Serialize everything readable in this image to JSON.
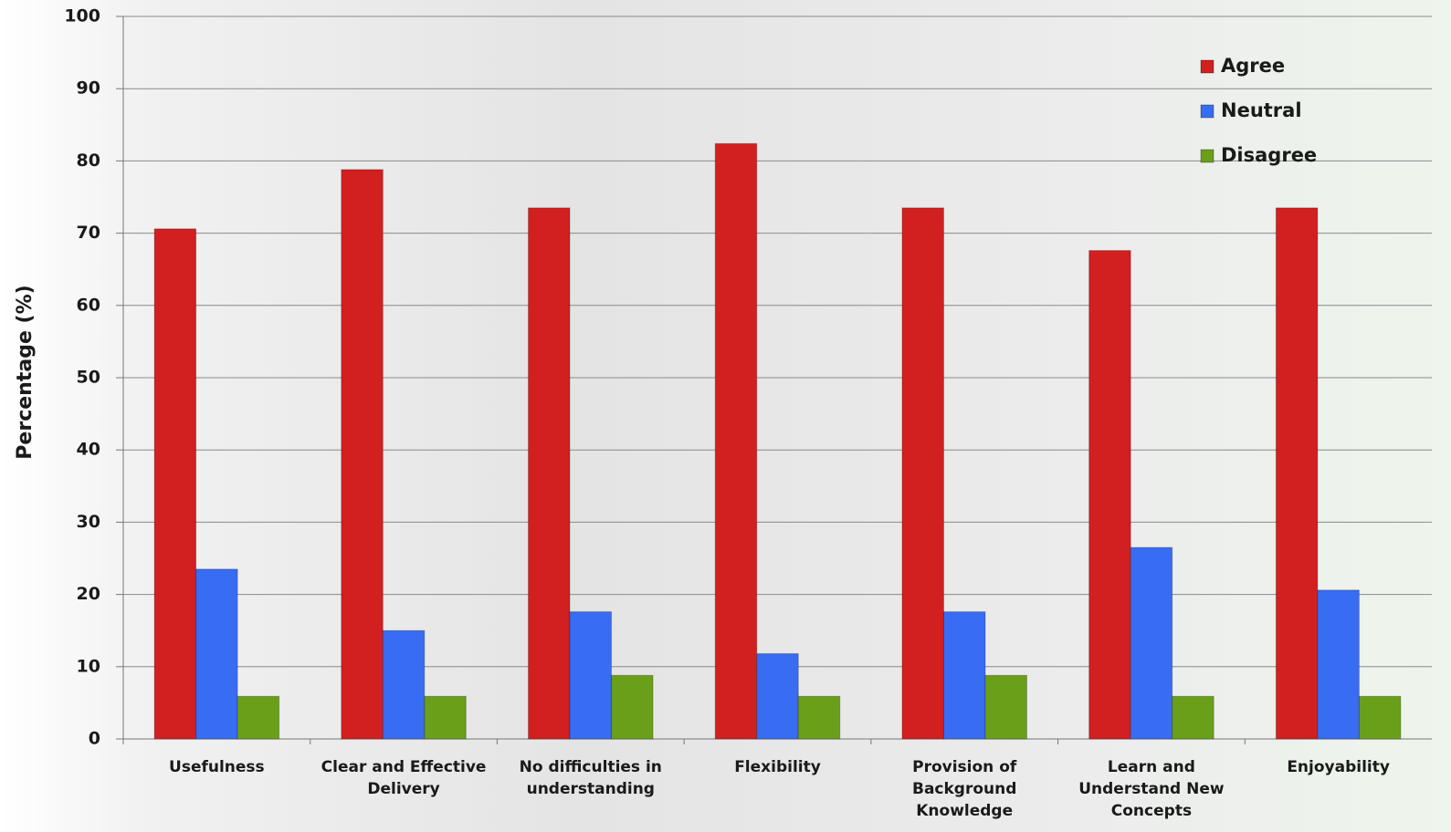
{
  "chart_data": {
    "type": "bar",
    "y_label": "Percentage (%)",
    "categories": [
      "Usefulness",
      "Clear and Effective Delivery",
      "No difficulties in understanding",
      "Flexibility",
      "Provision of Background Knowledge",
      "Learn and Understand New Concepts",
      "Enjoyability"
    ],
    "series": [
      {
        "name": "Agree",
        "color": "#d21f1f",
        "values": [
          70.6,
          78.8,
          73.5,
          82.4,
          73.5,
          67.6,
          73.5
        ]
      },
      {
        "name": "Neutral",
        "color": "#386cf2",
        "values": [
          23.5,
          15,
          17.6,
          11.8,
          17.6,
          26.5,
          20.6
        ]
      },
      {
        "name": "Disagree",
        "color": "#6a9f1a",
        "values": [
          5.9,
          5.9,
          8.8,
          5.9,
          8.8,
          5.9,
          5.9
        ]
      }
    ],
    "ylim": [
      0,
      100
    ],
    "yticks": [
      0,
      10,
      20,
      30,
      40,
      50,
      60,
      70,
      80,
      90,
      100
    ],
    "grid": true,
    "legend": "top-right"
  }
}
